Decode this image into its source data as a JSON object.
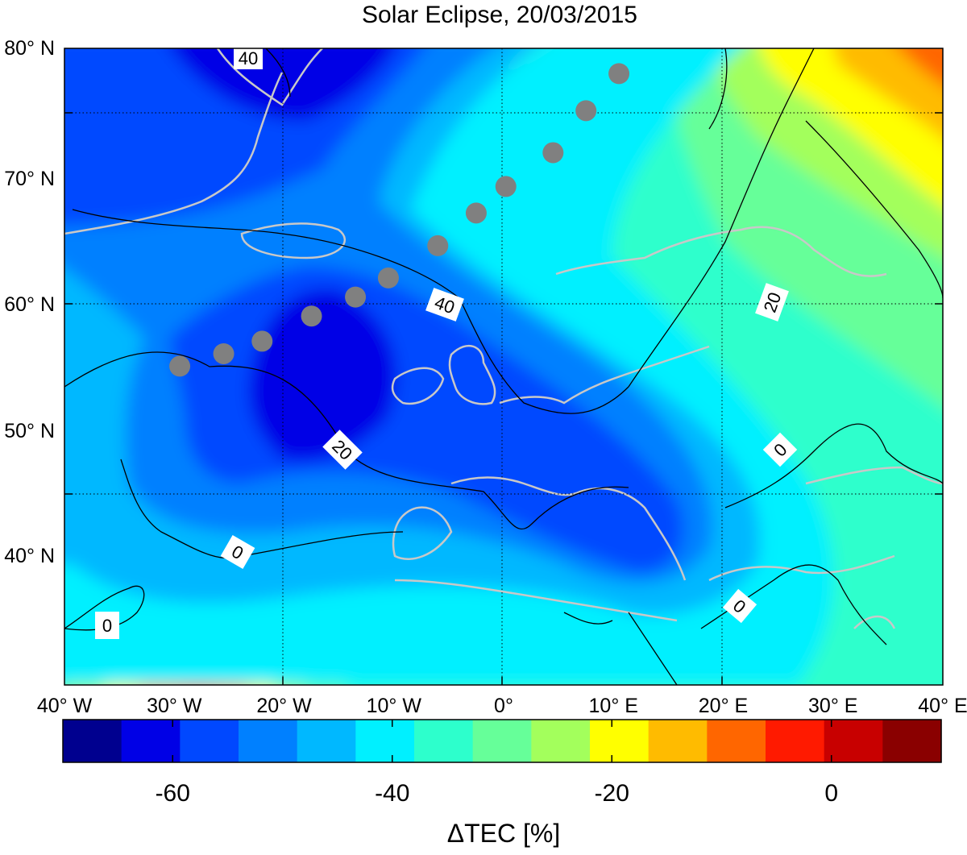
{
  "title": "Solar Eclipse, 20/03/2015",
  "map": {
    "lat_ticks": [
      {
        "value": 80,
        "label": "80° N"
      },
      {
        "value": 70,
        "label": "70° N"
      },
      {
        "value": 60,
        "label": "60° N"
      },
      {
        "value": 50,
        "label": "50° N"
      },
      {
        "value": 40,
        "label": "40° N"
      }
    ],
    "lon_ticks": [
      {
        "value": -40,
        "label": "40° W"
      },
      {
        "value": -30,
        "label": "30° W"
      },
      {
        "value": -20,
        "label": "20° W"
      },
      {
        "value": -10,
        "label": "10° W"
      },
      {
        "value": 0,
        "label": "0°"
      },
      {
        "value": 10,
        "label": "10° E"
      },
      {
        "value": 20,
        "label": "20° E"
      },
      {
        "value": 30,
        "label": "30° E"
      },
      {
        "value": 40,
        "label": "40° E"
      }
    ],
    "lon_range": [
      -40,
      40
    ],
    "lat_range": [
      30,
      80
    ],
    "grid": "dotted",
    "eclipse_path": [
      {
        "lon": -29.5,
        "lat": 56.5
      },
      {
        "lon": -25.5,
        "lat": 57.5
      },
      {
        "lon": -22.0,
        "lat": 58.5
      },
      {
        "lon": -17.5,
        "lat": 60.5
      },
      {
        "lon": -13.5,
        "lat": 62.0
      },
      {
        "lon": -10.5,
        "lat": 63.5
      },
      {
        "lon": -6.0,
        "lat": 66.0
      },
      {
        "lon": -2.5,
        "lat": 68.5
      },
      {
        "lon": 0.2,
        "lat": 70.5
      },
      {
        "lon": 4.5,
        "lat": 73.0
      },
      {
        "lon": 7.5,
        "lat": 76.0
      },
      {
        "lon": 10.5,
        "lat": 78.5
      }
    ],
    "contour_labels": [
      "40",
      "40",
      "20",
      "20",
      "0",
      "0",
      "0",
      "0"
    ]
  },
  "colorbar": {
    "label": "ΔTEC [%]",
    "range": [
      -70,
      10
    ],
    "ticks": [
      {
        "value": -60,
        "label": "-60"
      },
      {
        "value": -40,
        "label": "-40"
      },
      {
        "value": -20,
        "label": "-20"
      },
      {
        "value": 0,
        "label": "0"
      }
    ],
    "colors": [
      "#00008f",
      "#0000e6",
      "#0048ff",
      "#0080ff",
      "#00b8ff",
      "#00f0ff",
      "#2dffcc",
      "#66ff99",
      "#a3ff5c",
      "#ffff00",
      "#ffbb00",
      "#ff6600",
      "#ff1a00",
      "#c80000",
      "#8a0000"
    ]
  }
}
